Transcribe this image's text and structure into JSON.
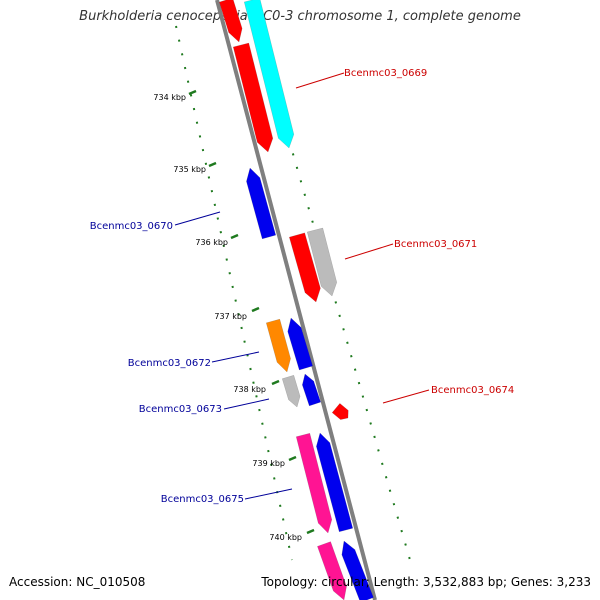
{
  "title": "Burkholderia cenocepacia MC0-3 chromosome 1, complete genome",
  "accession": "Accession: NC_010508",
  "topology": "Topology: circular; Length: 3,532,883 bp; Genes: 3,233",
  "colors": {
    "backbone": "#7f7f7f",
    "tick": "#1f7a1f",
    "label_forward": "#cc0000",
    "label_reverse": "#000099"
  },
  "scale_ticks": [
    "734 kbp",
    "735 kbp",
    "736 kbp",
    "737 kbp",
    "738 kbp",
    "739 kbp",
    "740 kbp"
  ],
  "gene_labels": [
    {
      "text": "Bcenmc03_0669",
      "strand": "forward"
    },
    {
      "text": "Bcenmc03_0670",
      "strand": "reverse"
    },
    {
      "text": "Bcenmc03_0671",
      "strand": "forward"
    },
    {
      "text": "Bcenmc03_0672",
      "strand": "reverse"
    },
    {
      "text": "Bcenmc03_0673",
      "strand": "reverse"
    },
    {
      "text": "Bcenmc03_0674",
      "strand": "forward"
    },
    {
      "text": "Bcenmc03_0675",
      "strand": "reverse"
    }
  ],
  "features": [
    {
      "name": "gene-red-a",
      "color": "#ff0000"
    },
    {
      "name": "gene-cyan-a",
      "color": "#00ffff"
    },
    {
      "name": "gene-red-b",
      "color": "#ff0000"
    },
    {
      "name": "gene-blue-0670",
      "color": "#0000ee"
    },
    {
      "name": "gene-red-0671",
      "color": "#ff0000"
    },
    {
      "name": "gene-gray-0671",
      "color": "#bbbbbb"
    },
    {
      "name": "gene-orange-0672",
      "color": "#ff8800"
    },
    {
      "name": "gene-blue-0672",
      "color": "#0000ee"
    },
    {
      "name": "gene-gray-0673",
      "color": "#bbbbbb"
    },
    {
      "name": "gene-blue-0673",
      "color": "#0000ee"
    },
    {
      "name": "gene-red-0674",
      "color": "#ff0000"
    },
    {
      "name": "gene-pink-0675",
      "color": "#ff1493"
    },
    {
      "name": "gene-blue-0675",
      "color": "#0000ee"
    },
    {
      "name": "gene-pink-b",
      "color": "#ff1493"
    },
    {
      "name": "gene-blue-b",
      "color": "#0000ee"
    }
  ]
}
